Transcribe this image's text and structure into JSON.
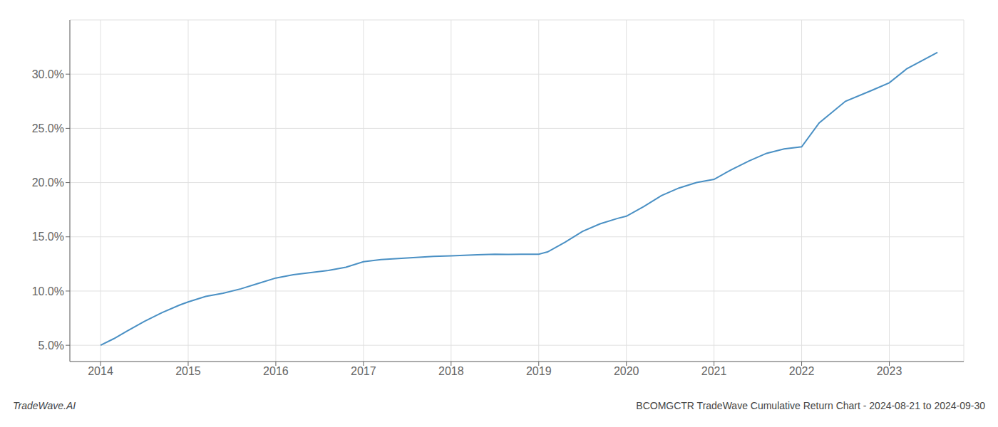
{
  "chart_data": {
    "type": "line",
    "x": [
      2014.0,
      2014.15,
      2014.3,
      2014.5,
      2014.7,
      2014.9,
      2015.0,
      2015.2,
      2015.4,
      2015.6,
      2015.8,
      2016.0,
      2016.2,
      2016.4,
      2016.6,
      2016.8,
      2017.0,
      2017.2,
      2017.4,
      2017.6,
      2017.8,
      2018.0,
      2018.15,
      2018.3,
      2018.5,
      2018.65,
      2018.8,
      2019.0,
      2019.1,
      2019.3,
      2019.5,
      2019.7,
      2019.9,
      2020.0,
      2020.2,
      2020.4,
      2020.6,
      2020.8,
      2021.0,
      2021.2,
      2021.4,
      2021.6,
      2021.8,
      2022.0,
      2022.2,
      2022.5,
      2022.8,
      2023.0,
      2023.2,
      2023.55
    ],
    "values": [
      5.0,
      5.6,
      6.3,
      7.2,
      8.0,
      8.7,
      9.0,
      9.5,
      9.8,
      10.2,
      10.7,
      11.2,
      11.5,
      11.7,
      11.9,
      12.2,
      12.7,
      12.9,
      13.0,
      13.1,
      13.2,
      13.25,
      13.3,
      13.35,
      13.4,
      13.38,
      13.4,
      13.4,
      13.6,
      14.5,
      15.5,
      16.2,
      16.7,
      16.9,
      17.8,
      18.8,
      19.5,
      20.0,
      20.3,
      21.2,
      22.0,
      22.7,
      23.1,
      23.3,
      25.5,
      27.5,
      28.5,
      29.2,
      30.5,
      32.0
    ],
    "color": "#4a90c4",
    "xlim": [
      2013.65,
      2023.85
    ],
    "xticks": [
      2014,
      2015,
      2016,
      2017,
      2018,
      2019,
      2020,
      2021,
      2022,
      2023
    ],
    "ylim": [
      3.5,
      35.0
    ],
    "yticks": [
      {
        "value": 5.0,
        "label": "5.0%"
      },
      {
        "value": 10.0,
        "label": "10.0%"
      },
      {
        "value": 15.0,
        "label": "15.0%"
      },
      {
        "value": 20.0,
        "label": "20.0%"
      },
      {
        "value": 25.0,
        "label": "25.0%"
      },
      {
        "value": 30.0,
        "label": "30.0%"
      }
    ],
    "grid": true,
    "annotations": [
      "TradeWave.AI",
      "BCOMGCTR TradeWave Cumulative Return Chart - 2024-08-21 to 2024-09-30"
    ]
  }
}
